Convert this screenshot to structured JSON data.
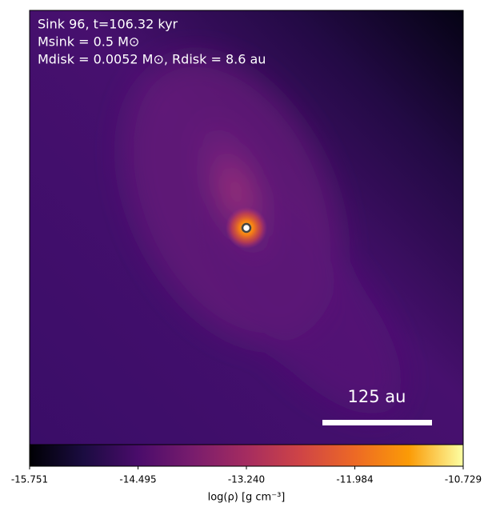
{
  "chart_data": {
    "type": "image",
    "annotations": [
      "Sink 96, t=106.32 kyr",
      "Msink = 0.5 M⊙",
      "Mdisk = 0.0052 M⊙, Rdisk = 8.6 au"
    ],
    "scale_bar_label": "125 au",
    "colorbar": {
      "label": "log(ρ) [g cm⁻³]",
      "clim": [
        -15.751,
        -10.729
      ],
      "ticks": [
        -15.751,
        -14.495,
        {
          "value": -13.24,
          "label": "-13.240"
        },
        -11.984,
        -10.729
      ],
      "colormap": "inferno"
    }
  }
}
